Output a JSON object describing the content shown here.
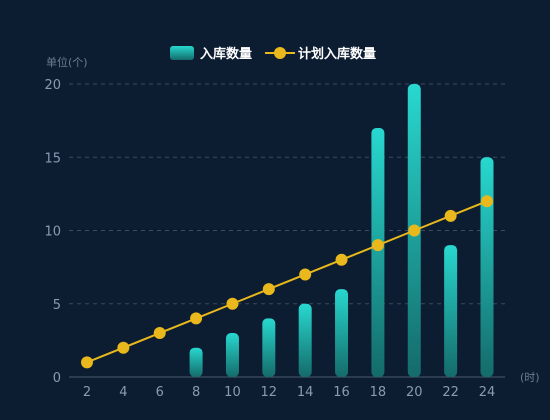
{
  "chart_data": {
    "type": "bar",
    "ylabel": "单位(个)",
    "xlabel": "(时)",
    "categories": [
      "2",
      "4",
      "6",
      "8",
      "10",
      "12",
      "14",
      "16",
      "18",
      "20",
      "22",
      "24"
    ],
    "ylim": [
      0,
      20
    ],
    "yticks": [
      "0",
      "5",
      "10",
      "15",
      "20"
    ],
    "grid": true,
    "legend_position": "top-center",
    "series": [
      {
        "name": "入库数量",
        "type": "bar",
        "values": [
          0,
          0,
          0,
          2,
          3,
          4,
          5,
          6,
          17,
          20,
          9,
          15
        ],
        "color_top": "#28d8cf",
        "color_bottom": "#146b6a"
      },
      {
        "name": "计划入库数量",
        "type": "line",
        "values": [
          1,
          2,
          3,
          4,
          5,
          6,
          7,
          8,
          9,
          10,
          11,
          12
        ],
        "color": "#e8b81c"
      }
    ]
  },
  "colors": {
    "background": "#0c1c31",
    "grid": "#3a4b60",
    "axis": "#8a9bb0"
  }
}
